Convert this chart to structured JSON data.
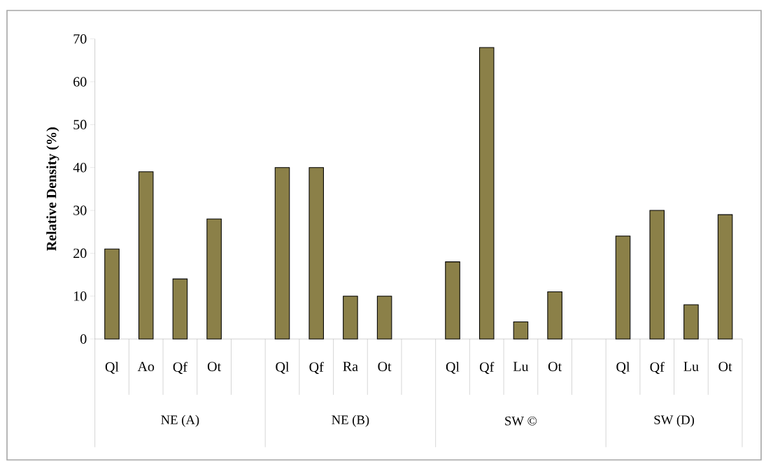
{
  "chart_data": {
    "type": "bar",
    "ylabel": "Relative Density (%)",
    "categories": [
      "Ql",
      "Ao",
      "Qf",
      "Ot",
      null,
      "Ql",
      "Qf",
      "Ra",
      "Ot",
      null,
      "Ql",
      "Qf",
      "Lu",
      "Ot",
      null,
      "Ql",
      "Qf",
      "Lu",
      "Ot"
    ],
    "values": [
      21,
      39,
      14,
      28,
      null,
      40,
      40,
      10,
      10,
      null,
      18,
      68,
      4,
      11,
      null,
      24,
      30,
      8,
      29
    ],
    "color": "#8b8048",
    "ylim": [
      0,
      70
    ],
    "yticks": [
      0,
      10,
      20,
      30,
      40,
      50,
      60,
      70
    ],
    "annotations": [
      "NE (A)",
      "NE (B)",
      "SW ©",
      "SW (D)"
    ]
  }
}
